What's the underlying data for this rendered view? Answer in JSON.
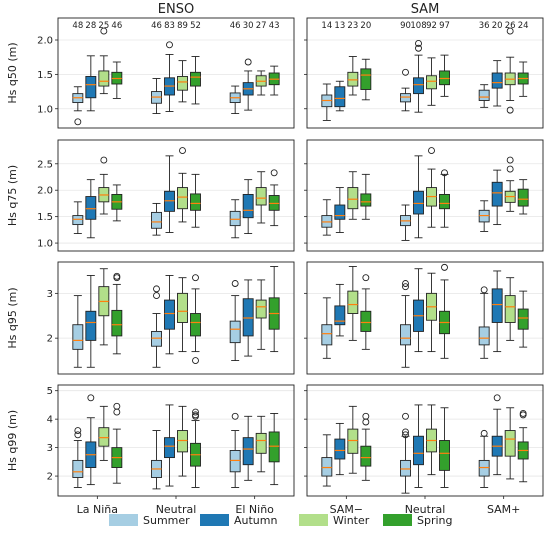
{
  "chart_data": {
    "type": "boxplot",
    "panel_titles": [
      "ENSO",
      "SAM"
    ],
    "seasons": [
      "Summer",
      "Autumn",
      "Winter",
      "Spring"
    ],
    "colors": {
      "Summer": "#a6cee3",
      "Autumn": "#1f78b4",
      "Winter": "#b2df8a",
      "Spring": "#33a02c",
      "median": "#ff7f0e"
    },
    "groups": {
      "ENSO": [
        "La Niña",
        "Neutral",
        "El Niño"
      ],
      "SAM": [
        "SAM−",
        "Neutral",
        "SAM+"
      ]
    },
    "counts": {
      "ENSO": [
        [
          48,
          28,
          25,
          46
        ],
        [
          46,
          83,
          89,
          52
        ],
        [
          46,
          30,
          27,
          43
        ]
      ],
      "SAM": [
        [
          14,
          13,
          23,
          20
        ],
        [
          90,
          108,
          92,
          97
        ],
        [
          36,
          20,
          26,
          24
        ]
      ]
    },
    "rows": [
      {
        "ylabel": "Hs q50 (m)",
        "ylim": [
          0.72,
          2.32
        ],
        "yticks": [
          1.0,
          1.5,
          2.0
        ],
        "ENSO": [
          [
            [
              0.97,
              1.09,
              1.16,
              1.22,
              1.32,
              [
                0.81
              ]
            ],
            [
              0.97,
              1.16,
              1.35,
              1.47,
              1.77,
              []
            ],
            [
              1.22,
              1.33,
              1.4,
              1.55,
              1.77,
              [
                2.13
              ]
            ],
            [
              1.15,
              1.36,
              1.44,
              1.53,
              1.68,
              []
            ]
          ],
          [
            [
              0.93,
              1.08,
              1.17,
              1.25,
              1.44,
              []
            ],
            [
              0.96,
              1.2,
              1.33,
              1.45,
              1.79,
              [
                1.93
              ]
            ],
            [
              1.1,
              1.27,
              1.39,
              1.47,
              1.7,
              []
            ],
            [
              1.07,
              1.33,
              1.46,
              1.53,
              1.76,
              []
            ]
          ],
          [
            [
              0.93,
              1.09,
              1.16,
              1.23,
              1.33,
              []
            ],
            [
              0.98,
              1.2,
              1.29,
              1.38,
              1.55,
              [
                1.68
              ]
            ],
            [
              1.2,
              1.33,
              1.4,
              1.48,
              1.55,
              []
            ],
            [
              1.2,
              1.35,
              1.43,
              1.52,
              1.62,
              []
            ]
          ]
        ],
        "SAM": [
          [
            [
              0.83,
              1.03,
              1.12,
              1.2,
              1.36,
              []
            ],
            [
              0.97,
              1.03,
              1.15,
              1.32,
              1.4,
              []
            ],
            [
              1.2,
              1.33,
              1.42,
              1.53,
              1.76,
              []
            ],
            [
              1.13,
              1.28,
              1.49,
              1.58,
              1.72,
              []
            ]
          ],
          [
            [
              0.97,
              1.1,
              1.17,
              1.22,
              1.3,
              [
                1.53
              ]
            ],
            [
              0.95,
              1.22,
              1.35,
              1.45,
              1.78,
              [
                1.88,
                1.95
              ]
            ],
            [
              1.05,
              1.29,
              1.4,
              1.48,
              1.74,
              []
            ],
            [
              1.18,
              1.35,
              1.44,
              1.55,
              1.78,
              []
            ]
          ],
          [
            [
              1.02,
              1.12,
              1.17,
              1.27,
              1.35,
              []
            ],
            [
              1.04,
              1.3,
              1.38,
              1.52,
              1.7,
              []
            ],
            [
              1.12,
              1.35,
              1.43,
              1.52,
              1.75,
              [
                0.98,
                2.13
              ]
            ],
            [
              1.18,
              1.36,
              1.44,
              1.52,
              1.68,
              []
            ]
          ]
        ]
      },
      {
        "ylabel": "Hs q75 (m)",
        "ylim": [
          0.85,
          2.95
        ],
        "yticks": [
          1.0,
          1.5,
          2.0,
          2.5
        ],
        "ENSO": [
          [
            [
              1.18,
              1.35,
              1.45,
              1.52,
              1.78,
              []
            ],
            [
              1.1,
              1.45,
              1.65,
              1.88,
              2.2,
              []
            ],
            [
              1.55,
              1.78,
              1.91,
              2.05,
              2.3,
              [
                2.57
              ]
            ],
            [
              1.42,
              1.64,
              1.78,
              1.92,
              2.1,
              []
            ]
          ],
          [
            [
              1.15,
              1.28,
              1.4,
              1.58,
              1.75,
              []
            ],
            [
              1.2,
              1.6,
              1.8,
              1.98,
              2.65,
              []
            ],
            [
              1.4,
              1.65,
              1.87,
              2.05,
              2.32,
              [
                2.75
              ]
            ],
            [
              1.3,
              1.62,
              1.75,
              1.93,
              2.3,
              []
            ]
          ],
          [
            [
              1.1,
              1.33,
              1.45,
              1.6,
              1.82,
              []
            ],
            [
              1.18,
              1.48,
              1.62,
              1.92,
              2.2,
              []
            ],
            [
              1.38,
              1.72,
              1.85,
              2.05,
              2.35,
              []
            ],
            [
              1.33,
              1.62,
              1.75,
              1.9,
              2.1,
              [
                2.33
              ]
            ]
          ]
        ],
        "SAM": [
          [
            [
              1.15,
              1.3,
              1.4,
              1.52,
              1.82,
              []
            ],
            [
              1.2,
              1.45,
              1.52,
              1.72,
              2.05,
              []
            ],
            [
              1.45,
              1.65,
              1.83,
              2.05,
              2.35,
              []
            ],
            [
              1.45,
              1.7,
              1.78,
              1.93,
              2.3,
              []
            ]
          ],
          [
            [
              1.05,
              1.33,
              1.42,
              1.52,
              1.72,
              []
            ],
            [
              1.1,
              1.55,
              1.75,
              1.98,
              2.65,
              []
            ],
            [
              1.3,
              1.7,
              1.88,
              2.05,
              2.4,
              [
                2.75
              ]
            ],
            [
              1.3,
              1.65,
              1.75,
              1.92,
              2.3,
              [
                2.33
              ]
            ]
          ],
          [
            [
              1.22,
              1.4,
              1.52,
              1.62,
              1.8,
              []
            ],
            [
              1.35,
              1.7,
              1.95,
              2.15,
              2.38,
              []
            ],
            [
              1.6,
              1.77,
              1.88,
              1.98,
              2.18,
              [
                2.4,
                2.57
              ]
            ],
            [
              1.55,
              1.7,
              1.83,
              2.02,
              2.2,
              []
            ]
          ]
        ]
      },
      {
        "ylabel": "Hs q95 (m)",
        "ylim": [
          1.2,
          3.7
        ],
        "yticks": [
          2,
          3
        ],
        "ENSO": [
          [
            [
              1.35,
              1.75,
              1.95,
              2.3,
              2.95,
              []
            ],
            [
              1.35,
              1.95,
              2.35,
              2.6,
              3.4,
              []
            ],
            [
              1.85,
              2.5,
              2.82,
              3.15,
              3.55,
              []
            ],
            [
              1.65,
              2.05,
              2.3,
              2.62,
              3.2,
              [
                3.35,
                3.38
              ]
            ]
          ],
          [
            [
              1.35,
              1.82,
              2.0,
              2.15,
              2.55,
              [
                2.95,
                3.1
              ]
            ],
            [
              1.65,
              2.2,
              2.55,
              2.85,
              3.4,
              []
            ],
            [
              1.7,
              2.35,
              2.6,
              3.0,
              3.35,
              []
            ],
            [
              1.7,
              2.05,
              2.35,
              2.55,
              3.1,
              [
                1.5,
                3.35
              ]
            ]
          ],
          [
            [
              1.5,
              1.9,
              2.2,
              2.38,
              2.95,
              [
                3.22
              ]
            ],
            [
              1.6,
              2.05,
              2.45,
              2.88,
              3.3,
              []
            ],
            [
              1.75,
              2.45,
              2.7,
              2.85,
              3.3,
              []
            ],
            [
              1.7,
              2.2,
              2.55,
              2.9,
              3.6,
              []
            ]
          ]
        ],
        "SAM": [
          [
            [
              1.55,
              1.85,
              2.1,
              2.3,
              2.9,
              []
            ],
            [
              2.05,
              2.3,
              2.38,
              2.72,
              3.2,
              []
            ],
            [
              1.95,
              2.55,
              2.75,
              3.05,
              3.6,
              []
            ],
            [
              1.75,
              2.15,
              2.35,
              2.6,
              3.1,
              [
                3.35
              ]
            ]
          ],
          [
            [
              1.35,
              1.85,
              2.0,
              2.3,
              2.95,
              [
                3.15,
                3.22
              ]
            ],
            [
              1.7,
              2.15,
              2.5,
              2.85,
              3.55,
              []
            ],
            [
              1.7,
              2.4,
              2.7,
              3.0,
              3.45,
              []
            ],
            [
              1.55,
              2.1,
              2.35,
              2.6,
              3.3,
              [
                3.58
              ]
            ]
          ],
          [
            [
              1.55,
              1.85,
              2.0,
              2.25,
              3.0,
              [
                3.08
              ]
            ],
            [
              1.7,
              2.35,
              2.75,
              3.1,
              3.5,
              []
            ],
            [
              1.95,
              2.35,
              2.7,
              2.95,
              3.35,
              []
            ],
            [
              1.8,
              2.2,
              2.45,
              2.65,
              3.05,
              []
            ]
          ]
        ]
      },
      {
        "ylabel": "Hs q99 (m)",
        "ylim": [
          1.3,
          5.2
        ],
        "yticks": [
          2,
          3,
          4,
          5
        ],
        "ENSO": [
          [
            [
              1.6,
              1.95,
              2.15,
              2.55,
              3.25,
              [
                3.45,
                3.6
              ]
            ],
            [
              1.7,
              2.3,
              2.75,
              3.2,
              4.05,
              [
                4.75
              ]
            ],
            [
              2.55,
              3.05,
              3.35,
              3.7,
              4.45,
              []
            ],
            [
              1.75,
              2.3,
              2.65,
              3.0,
              3.65,
              [
                4.25,
                4.45
              ]
            ]
          ],
          [
            [
              1.55,
              1.95,
              2.25,
              2.55,
              3.6,
              []
            ],
            [
              1.65,
              2.65,
              3.05,
              3.35,
              4.5,
              []
            ],
            [
              2.0,
              2.85,
              3.25,
              3.6,
              4.45,
              []
            ],
            [
              1.6,
              2.35,
              2.75,
              3.15,
              3.95,
              [
                4.1,
                4.15,
                4.25
              ]
            ]
          ],
          [
            [
              1.6,
              2.15,
              2.55,
              2.9,
              3.6,
              [
                4.1
              ]
            ],
            [
              1.85,
              2.4,
              2.95,
              3.35,
              4.1,
              []
            ],
            [
              2.15,
              2.8,
              3.25,
              3.5,
              4.1,
              []
            ],
            [
              1.7,
              2.5,
              3.05,
              3.55,
              4.2,
              []
            ]
          ]
        ],
        "SAM": [
          [
            [
              1.65,
              2.0,
              2.3,
              2.65,
              3.45,
              []
            ],
            [
              2.05,
              2.6,
              2.9,
              3.3,
              3.85,
              []
            ],
            [
              2.1,
              2.8,
              3.25,
              3.65,
              4.45,
              []
            ],
            [
              1.85,
              2.35,
              2.65,
              3.05,
              3.65,
              [
                3.9,
                4.1
              ]
            ]
          ],
          [
            [
              1.4,
              2.0,
              2.25,
              2.55,
              3.4,
              [
                3.45,
                3.55,
                4.1
              ]
            ],
            [
              1.6,
              2.4,
              2.8,
              3.4,
              4.5,
              []
            ],
            [
              2.05,
              2.85,
              3.25,
              3.65,
              4.5,
              []
            ],
            [
              1.6,
              2.2,
              2.8,
              3.25,
              4.4,
              []
            ]
          ],
          [
            [
              1.6,
              2.0,
              2.3,
              2.55,
              3.4,
              [
                3.5
              ]
            ],
            [
              2.05,
              2.7,
              3.05,
              3.4,
              4.35,
              [
                4.75
              ]
            ],
            [
              1.9,
              2.7,
              3.3,
              3.6,
              4.4,
              []
            ],
            [
              1.8,
              2.6,
              2.9,
              3.2,
              3.7,
              [
                4.15,
                4.2
              ]
            ]
          ]
        ]
      }
    ]
  }
}
